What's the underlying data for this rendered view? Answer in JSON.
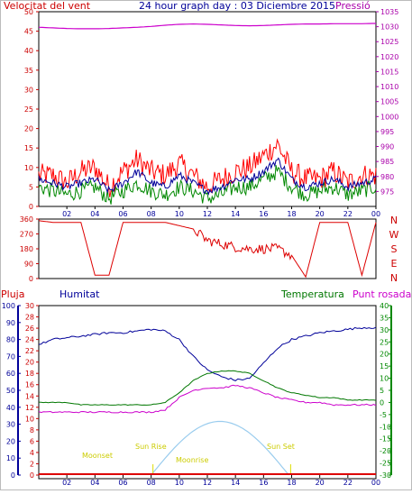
{
  "header": {
    "left_title": "Velocitat del vent",
    "center_title": "24 hour graph day : 03 Diciembre 2015",
    "right_title": "Pressió"
  },
  "colors": {
    "wind": "#dd0000",
    "gust": "#ff0000",
    "wind_blue": "#000099",
    "wind_green": "#008800",
    "pressure": "#cc00cc",
    "humidity": "#000099",
    "temperature": "#007700",
    "dewpoint": "#cc00cc",
    "rain": "#dd0000",
    "solar": "#99ccee",
    "axis_left": "#cc0000",
    "axis_right": "#aa00aa",
    "axis_blue": "#000099",
    "axis_green": "#008800",
    "annot": "#dddd00"
  },
  "direction_labels": [
    "N",
    "W",
    "S",
    "E",
    "N"
  ],
  "lower_labels": {
    "pluja": "Pluja",
    "humitat": "Humitat",
    "temperatura": "Temperatura",
    "punt_rosada": "Punt rosada"
  },
  "annotations": {
    "sunrise": "Sun Rise",
    "sunset": "Sun Set",
    "moonrise": "Moonrise",
    "moonset": "Moonset"
  },
  "chart_data": [
    {
      "type": "line",
      "name": "wind",
      "x_ticks": [
        "02",
        "04",
        "06",
        "08",
        "10",
        "12",
        "14",
        "16",
        "18",
        "20",
        "22",
        "00"
      ],
      "ylim_left": [
        0,
        50
      ],
      "yticks_left": [
        0,
        5,
        10,
        15,
        20,
        25,
        30,
        35,
        40,
        45,
        50
      ],
      "ylim_right": [
        970,
        1035
      ],
      "yticks_right": [
        975,
        980,
        985,
        990,
        995,
        1000,
        1005,
        1010,
        1015,
        1020,
        1025,
        1030,
        1035
      ],
      "pressure_hourly": [
        1029.8,
        1029.6,
        1029.4,
        1029.3,
        1029.3,
        1029.4,
        1029.6,
        1029.8,
        1030.1,
        1030.5,
        1030.8,
        1030.9,
        1030.8,
        1030.6,
        1030.4,
        1030.3,
        1030.4,
        1030.6,
        1030.8,
        1030.9,
        1030.9,
        1031.0,
        1031.0,
        1031.0,
        1031.1
      ],
      "wind_hourly": [
        7,
        6,
        5,
        6,
        7,
        4,
        6,
        9,
        6,
        5,
        8,
        6,
        4,
        5,
        7,
        7,
        9,
        12,
        7,
        5,
        6,
        7,
        5,
        6,
        7
      ],
      "gust_hourly": [
        8,
        8,
        6,
        9,
        10,
        5,
        9,
        12,
        9,
        8,
        11,
        8,
        5,
        7,
        9,
        10,
        13,
        16,
        9,
        7,
        7,
        9,
        6,
        8,
        8
      ],
      "green_hourly": [
        5,
        4,
        3,
        4,
        5,
        2,
        4,
        6,
        4,
        3,
        5,
        4,
        2,
        3,
        5,
        5,
        7,
        9,
        5,
        3,
        4,
        5,
        3,
        4,
        5
      ]
    },
    {
      "type": "line",
      "name": "wind_direction",
      "ylim": [
        0,
        360
      ],
      "yticks": [
        0,
        90,
        180,
        270,
        360
      ],
      "direction_hourly": [
        350,
        340,
        340,
        340,
        20,
        20,
        340,
        340,
        340,
        340,
        320,
        300,
        230,
        210,
        190,
        180,
        180,
        180,
        140,
        10,
        340,
        340,
        340,
        20,
        340
      ]
    },
    {
      "type": "line",
      "name": "temp_hum",
      "x_ticks": [
        "02",
        "04",
        "06",
        "08",
        "10",
        "12",
        "14",
        "16",
        "18",
        "20",
        "22",
        "00"
      ],
      "ylim_humidity": [
        0,
        100
      ],
      "yticks_humidity": [
        0,
        10,
        20,
        30,
        40,
        50,
        60,
        70,
        80,
        90,
        100
      ],
      "ylim_rain": [
        0,
        30
      ],
      "yticks_rain": [
        0,
        2,
        4,
        6,
        8,
        10,
        12,
        14,
        16,
        18,
        20,
        22,
        24,
        26,
        28,
        30
      ],
      "ylim_temp": [
        -30,
        40
      ],
      "yticks_temp": [
        -30,
        -25,
        -20,
        -15,
        -10,
        -5,
        0,
        5,
        10,
        15,
        20,
        25,
        30,
        35,
        40
      ],
      "humidity_hourly": [
        77,
        80,
        81,
        82,
        83,
        84,
        84,
        85,
        86,
        85,
        80,
        70,
        62,
        58,
        56,
        57,
        66,
        75,
        80,
        82,
        84,
        85,
        86,
        87,
        87
      ],
      "temperature_hourly": [
        0,
        0,
        0,
        -1,
        -1,
        -1,
        -1,
        -1,
        -1,
        0,
        4,
        9,
        12,
        13,
        13,
        12,
        9,
        6,
        4,
        3,
        2,
        2,
        1,
        1,
        1
      ],
      "dewpoint_hourly": [
        -4,
        -4,
        -4,
        -4,
        -4,
        -4,
        -4,
        -4,
        -4,
        -3,
        2,
        5,
        6,
        6,
        7,
        6,
        4,
        2,
        1,
        0,
        0,
        -1,
        -1,
        -1,
        -1
      ],
      "solar_peak_rain_units": 9.5,
      "sunrise_hour": 8.0,
      "sunset_hour": 17.8
    }
  ]
}
